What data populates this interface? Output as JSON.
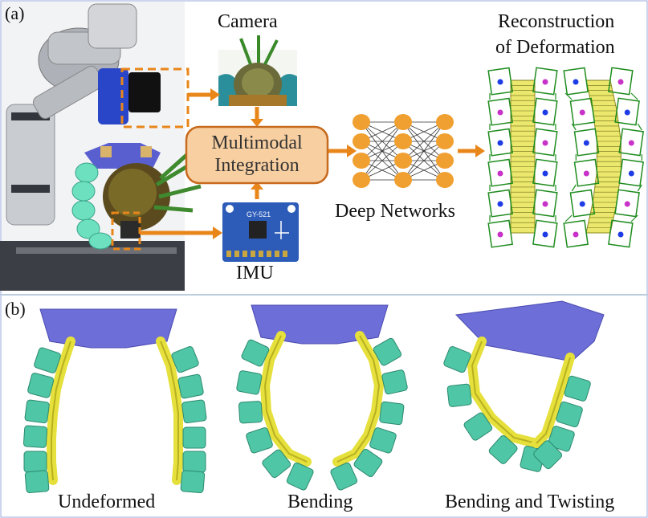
{
  "panel_a": {
    "tag": "(a)",
    "camera_label": "Camera",
    "imu_label": "IMU",
    "imu_chip_text": "GY-521",
    "integration_line1": "Multimodal",
    "integration_line2": "Integration",
    "networks_label": "Deep Networks",
    "recon_line1": "Reconstruction",
    "recon_line2": "of  Deformation"
  },
  "panel_b": {
    "tag": "(b)",
    "captions": [
      "Undeformed",
      "Bending",
      "Bending and Twisting"
    ]
  },
  "colors": {
    "arrow_orange": "#E8861A",
    "box_fill": "#F8CFA0",
    "box_stroke": "#C76A1E",
    "node_orange": "#F0A030",
    "gripper_purple": "#6E6ED8",
    "pad_teal": "#4FC6A5",
    "strip_yellow": "#E6E03C",
    "mesh_green": "#1E8C1E",
    "dot_blue": "#1E3CE6",
    "dot_magenta": "#C832C8"
  },
  "icons": [
    "robot-arm-photo",
    "camera-view-photo",
    "imu-board-photo",
    "neural-network-icon",
    "mesh-reconstruction"
  ]
}
